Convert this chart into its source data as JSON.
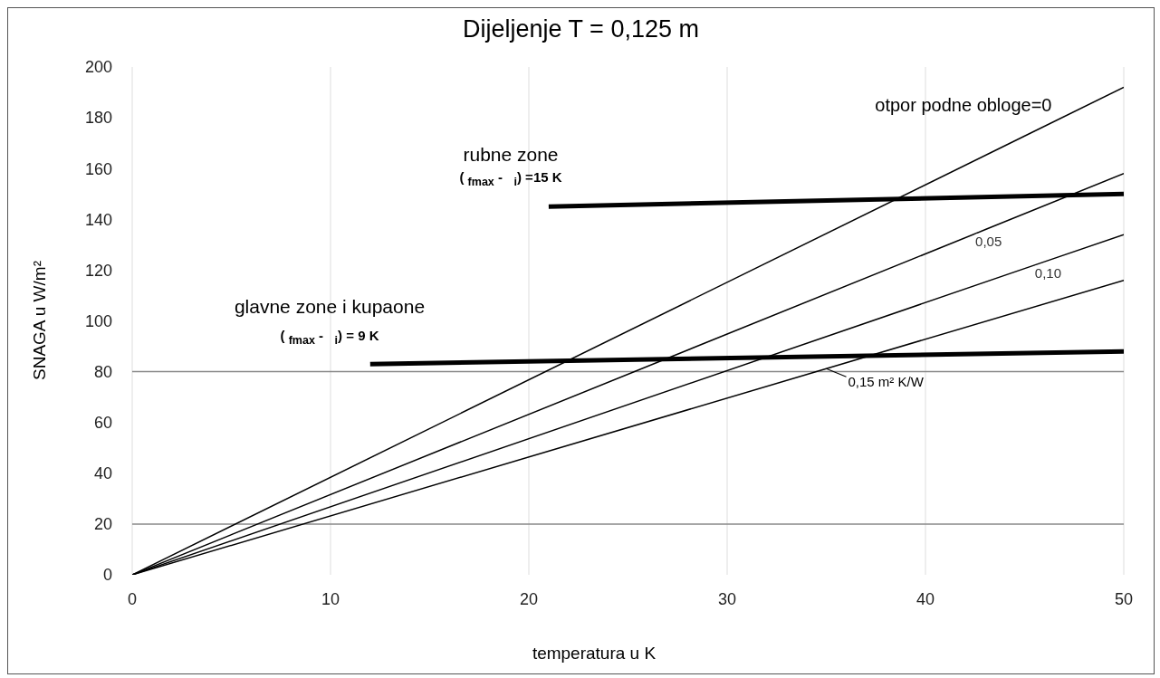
{
  "chart_data": {
    "type": "line",
    "title": "Dijeljenje T = 0,125 m",
    "xlabel": "temperatura u K",
    "ylabel": "SNAGA u W/m²",
    "xlim": [
      0,
      50
    ],
    "xticks": [
      0,
      10,
      20,
      30,
      40,
      50
    ],
    "ylim": [
      0,
      200
    ],
    "yticks": [
      0,
      20,
      40,
      60,
      80,
      100,
      120,
      140,
      160,
      180,
      200
    ],
    "grid": "x",
    "marker": "none",
    "line_style": "solid",
    "ref_lines": [
      {
        "axis": "y",
        "value": 20,
        "color": "#888888"
      },
      {
        "axis": "y",
        "value": 80,
        "color": "#888888"
      }
    ],
    "annotations": [
      "rubne zone",
      "( $_{fmax}$ -   $_{i}$) =15 K",
      "glavne zone i kupaone",
      "( $_{fmax}$ -   $_{i}$) = 9 K"
    ],
    "series": [
      {
        "name": "otpor podne obloge=0",
        "color": "#000000",
        "x": [
          0,
          45,
          50
        ],
        "values": [
          0,
          172.8,
          192
        ]
      },
      {
        "name": "0,05",
        "color": "#000000",
        "x": [
          0,
          43,
          50
        ],
        "values": [
          0,
          135.9,
          158
        ]
      },
      {
        "name": "0,10",
        "color": "#000000",
        "x": [
          0,
          46,
          50
        ],
        "values": [
          0,
          123.3,
          134
        ]
      },
      {
        "name": "0,15 m² K/W",
        "color": "#000000",
        "x": [
          0,
          35,
          50
        ],
        "values": [
          0,
          81.2,
          116
        ]
      },
      {
        "color": "#000000",
        "x": [
          21,
          50
        ],
        "values": [
          145,
          150
        ]
      },
      {
        "color": "#000000",
        "x": [
          12,
          50
        ],
        "values": [
          83,
          88
        ]
      }
    ]
  }
}
